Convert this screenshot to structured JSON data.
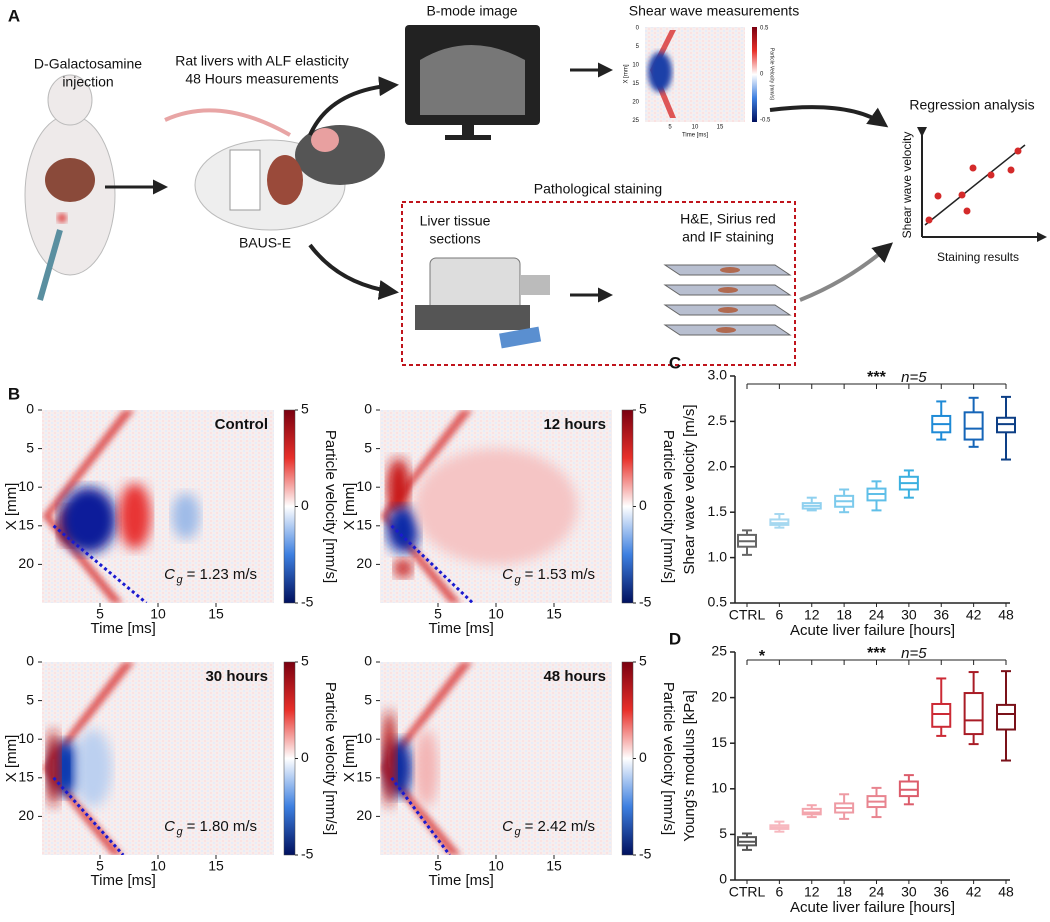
{
  "panel_a": {
    "label": "A",
    "injection": [
      "D-Galactosamine",
      "injection"
    ],
    "rat_text": [
      "Rat livers with ALF elasticity",
      "48 Hours measurements"
    ],
    "device": "BAUS-E",
    "bmode": "B-mode image",
    "shear": "Shear wave measurements",
    "inset": {
      "xticks": [
        5,
        10,
        15
      ],
      "yticks": [
        0,
        5,
        10,
        15,
        20,
        25
      ],
      "cticks": [
        0.5,
        0,
        -0.5
      ],
      "xlabel": "Time [ms]",
      "ylabel": "X [mm]",
      "clabel": "Particle Velocity (mm/s)"
    },
    "pathology": "Pathological staining",
    "sections": [
      "Liver tissue",
      "sections"
    ],
    "staining": [
      "H&E, Sirius red",
      "and IF staining"
    ],
    "regression": "Regression analysis",
    "reg_ylabel": "Shear wave velocity",
    "reg_xlabel": "Staining results"
  },
  "panel_b": {
    "label": "B",
    "xlim": [
      0,
      20
    ],
    "ylim": [
      0,
      25
    ],
    "clim": [
      -5,
      5
    ],
    "xticks": [
      5,
      10,
      15
    ],
    "yticks": [
      0,
      5,
      10,
      15,
      20
    ],
    "cticks": [
      5,
      0,
      -5
    ],
    "xlabel": "Time [ms]",
    "ylabel": "X [mm]",
    "clabel": "Particle velocity [mm/s]",
    "symbol": "C",
    "subscript": "g",
    "maps": [
      {
        "title": "Control",
        "speed": "= 1.23 m/s"
      },
      {
        "title": "12 hours",
        "speed": "= 1.53 m/s"
      },
      {
        "title": "30 hours",
        "speed": "= 1.80 m/s"
      },
      {
        "title": "48 hours",
        "speed": "= 2.42 m/s"
      }
    ]
  },
  "chart_data": [
    {
      "type": "box",
      "label": "C",
      "categories": [
        "CTRL",
        "6",
        "12",
        "18",
        "24",
        "30",
        "36",
        "42",
        "48"
      ],
      "boxes": [
        {
          "min": 1.03,
          "q1": 1.12,
          "median": 1.18,
          "q3": 1.25,
          "max": 1.3
        },
        {
          "min": 1.33,
          "q1": 1.36,
          "median": 1.38,
          "q3": 1.42,
          "max": 1.48
        },
        {
          "min": 1.52,
          "q1": 1.54,
          "median": 1.57,
          "q3": 1.6,
          "max": 1.66
        },
        {
          "min": 1.5,
          "q1": 1.56,
          "median": 1.62,
          "q3": 1.68,
          "max": 1.75
        },
        {
          "min": 1.52,
          "q1": 1.63,
          "median": 1.7,
          "q3": 1.76,
          "max": 1.84
        },
        {
          "min": 1.66,
          "q1": 1.75,
          "median": 1.82,
          "q3": 1.89,
          "max": 1.96
        },
        {
          "min": 2.3,
          "q1": 2.38,
          "median": 2.47,
          "q3": 2.56,
          "max": 2.72
        },
        {
          "min": 2.22,
          "q1": 2.3,
          "median": 2.42,
          "q3": 2.6,
          "max": 2.76
        },
        {
          "min": 2.08,
          "q1": 2.38,
          "median": 2.47,
          "q3": 2.54,
          "max": 2.77
        }
      ],
      "colors": [
        "#666666",
        "#a6d8f0",
        "#8fd0ef",
        "#7ccaec",
        "#5fbfe8",
        "#3bb0e0",
        "#1e8ad6",
        "#1565b8",
        "#0d3f86"
      ],
      "ylim": [
        0.5,
        3.0
      ],
      "yticks": [
        0.5,
        {
          "value": 1,
          "label": "1.0"
        },
        1.5,
        {
          "value": 2,
          "label": "2.0"
        },
        2.5,
        {
          "value": 3,
          "label": "3.0"
        }
      ],
      "xlabel": "Acute liver failure [hours]",
      "ylabel": "Shear wave velocity [m/s]",
      "annotations": [
        "***",
        "n=5"
      ]
    },
    {
      "type": "box",
      "label": "D",
      "categories": [
        "CTRL",
        "6",
        "12",
        "18",
        "24",
        "30",
        "36",
        "42",
        "48"
      ],
      "boxes": [
        {
          "min": 3.3,
          "q1": 3.8,
          "median": 4.2,
          "q3": 4.7,
          "max": 5.1
        },
        {
          "min": 5.3,
          "q1": 5.6,
          "median": 5.8,
          "q3": 6.0,
          "max": 6.4
        },
        {
          "min": 6.9,
          "q1": 7.2,
          "median": 7.4,
          "q3": 7.8,
          "max": 8.2
        },
        {
          "min": 6.7,
          "q1": 7.4,
          "median": 7.9,
          "q3": 8.4,
          "max": 9.4
        },
        {
          "min": 6.9,
          "q1": 8.0,
          "median": 8.6,
          "q3": 9.2,
          "max": 10.1
        },
        {
          "min": 8.3,
          "q1": 9.2,
          "median": 9.9,
          "q3": 10.8,
          "max": 11.5
        },
        {
          "min": 15.8,
          "q1": 16.8,
          "median": 18.2,
          "q3": 19.3,
          "max": 22.1
        },
        {
          "min": 14.9,
          "q1": 16.0,
          "median": 17.5,
          "q3": 20.5,
          "max": 22.8
        },
        {
          "min": 13.1,
          "q1": 16.5,
          "median": 18.2,
          "q3": 19.2,
          "max": 22.9
        }
      ],
      "colors": [
        "#555555",
        "#f7b8bf",
        "#f3a5ad",
        "#ee9aa3",
        "#e8848f",
        "#dc5c6b",
        "#cc2a35",
        "#a91c26",
        "#7a1119"
      ],
      "ylim": [
        0,
        25
      ],
      "yticks": [
        0,
        5,
        10,
        15,
        20,
        25
      ],
      "xlabel": "Acute liver failure [hours]",
      "ylabel": "Young's modulus [kPa]",
      "annotations": [
        "*",
        "***",
        "n=5"
      ]
    }
  ]
}
